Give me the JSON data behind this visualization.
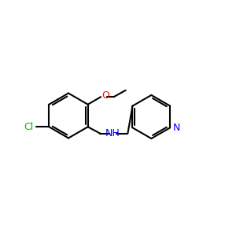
{
  "bg": "#ffffff",
  "bond_color": "#000000",
  "N_color": "#0000ff",
  "O_color": "#ff0000",
  "Cl_color": "#00bb00",
  "N_label": "N",
  "H_label": "H",
  "O_label": "O",
  "Cl_label": "Cl",
  "lw": 1.5,
  "lw2": 1.5
}
